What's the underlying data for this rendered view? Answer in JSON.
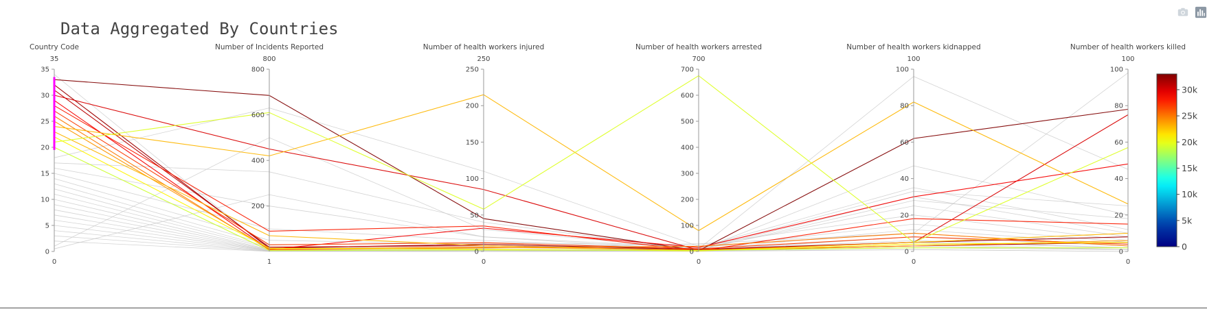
{
  "toolbar": {
    "camera_icon": "camera-icon",
    "plotly_icon": "plotly-logo-icon"
  },
  "chart_data": {
    "type": "parcoords",
    "title": "Data Aggregated By Countries",
    "dimensions": [
      {
        "label": "Country Code",
        "range": [
          0,
          35
        ],
        "tickvals": [
          0,
          5,
          10,
          15,
          20,
          25,
          30,
          35
        ],
        "top_label": "35",
        "bottom_label": "0",
        "constraint": [
          19.5,
          33.5
        ]
      },
      {
        "label": "Number of Incidents Reported",
        "range": [
          1,
          800
        ],
        "tickvals": [
          200,
          400,
          600,
          800
        ],
        "top_label": "800",
        "bottom_label": "1"
      },
      {
        "label": "Number of health workers injured",
        "range": [
          0,
          250
        ],
        "tickvals": [
          0,
          50,
          100,
          150,
          200,
          250
        ],
        "top_label": "250",
        "bottom_label": "0"
      },
      {
        "label": "Number of health workers arrested",
        "range": [
          0,
          700
        ],
        "tickvals": [
          0,
          100,
          200,
          300,
          400,
          500,
          600,
          700
        ],
        "top_label": "700",
        "bottom_label": "0"
      },
      {
        "label": "Number of health workers kidnapped",
        "range": [
          0,
          100
        ],
        "tickvals": [
          0,
          20,
          40,
          60,
          80,
          100
        ],
        "top_label": "100",
        "bottom_label": "0"
      },
      {
        "label": "Number of health workers killed",
        "range": [
          0,
          100
        ],
        "tickvals": [
          0,
          20,
          40,
          60,
          80,
          100
        ],
        "top_label": "100",
        "bottom_label": "0"
      }
    ],
    "colorbar": {
      "min": 0,
      "max": 33000,
      "tickvals": [
        0,
        5000,
        10000,
        15000,
        20000,
        25000,
        30000
      ],
      "ticktext": [
        "0",
        "5k",
        "10k",
        "15k",
        "20k",
        "25k",
        "30k"
      ],
      "colorscale": "Jet"
    },
    "highlighted_lines": [
      {
        "values": [
          33,
          685,
          45,
          3,
          62,
          78
        ],
        "color": 33000
      },
      {
        "values": [
          32,
          15,
          10,
          8,
          5,
          8
        ],
        "color": 32000
      },
      {
        "values": [
          31,
          20,
          8,
          5,
          3,
          5
        ],
        "color": 31000
      },
      {
        "values": [
          30,
          450,
          85,
          5,
          5,
          75
        ],
        "color": 30000
      },
      {
        "values": [
          29,
          10,
          32,
          15,
          30,
          48
        ],
        "color": 29000
      },
      {
        "values": [
          28,
          90,
          35,
          2,
          18,
          15
        ],
        "color": 28000
      },
      {
        "values": [
          27,
          30,
          12,
          10,
          8,
          4
        ],
        "color": 27000
      },
      {
        "values": [
          26,
          8,
          5,
          20,
          10,
          3
        ],
        "color": 25000
      },
      {
        "values": [
          25,
          12,
          6,
          5,
          3,
          6
        ],
        "color": 24000
      },
      {
        "values": [
          24,
          420,
          215,
          80,
          82,
          26
        ],
        "color": 23000
      },
      {
        "values": [
          23,
          70,
          8,
          3,
          5,
          10
        ],
        "color": 23000
      },
      {
        "values": [
          22,
          15,
          3,
          2,
          4,
          5
        ],
        "color": 21000
      },
      {
        "values": [
          21,
          610,
          58,
          675,
          5,
          57
        ],
        "color": 19500
      },
      {
        "values": [
          20,
          5,
          2,
          4,
          2,
          2
        ],
        "color": 19000
      }
    ],
    "gray_lines": [
      [
        34,
        10,
        5,
        10,
        96,
        45
      ],
      [
        18,
        630,
        110,
        20,
        10,
        98
      ],
      [
        17,
        350,
        40,
        5,
        47,
        20
      ],
      [
        16,
        200,
        20,
        15,
        35,
        12
      ],
      [
        15,
        100,
        15,
        8,
        30,
        10
      ],
      [
        14,
        50,
        10,
        10,
        25,
        8
      ],
      [
        13,
        30,
        12,
        25,
        20,
        6
      ],
      [
        12,
        20,
        8,
        12,
        15,
        5
      ],
      [
        11,
        15,
        6,
        6,
        12,
        4
      ],
      [
        10,
        10,
        4,
        30,
        10,
        3
      ],
      [
        9,
        8,
        3,
        5,
        8,
        3
      ],
      [
        8,
        6,
        2,
        8,
        6,
        2
      ],
      [
        7,
        5,
        2,
        3,
        5,
        2
      ],
      [
        6,
        4,
        1,
        4,
        4,
        1
      ],
      [
        5,
        3,
        1,
        2,
        3,
        1
      ],
      [
        4,
        2,
        1,
        1,
        2,
        1
      ],
      [
        3,
        2,
        0,
        1,
        1,
        0
      ],
      [
        2,
        1,
        0,
        0,
        1,
        0
      ],
      [
        1,
        500,
        30,
        10,
        33,
        25
      ],
      [
        0.5,
        250,
        20,
        5,
        28,
        18
      ]
    ]
  }
}
